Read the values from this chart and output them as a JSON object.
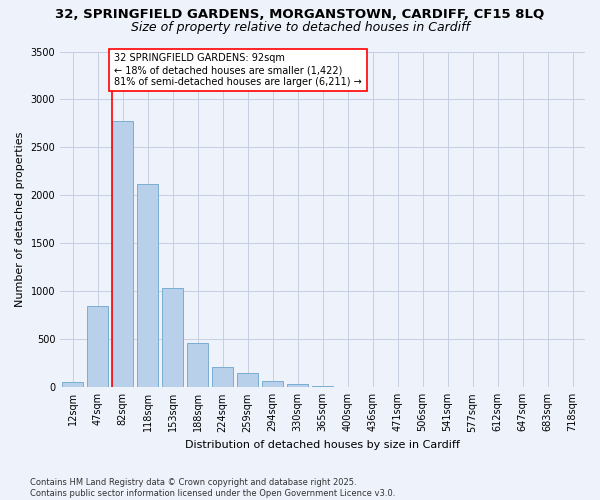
{
  "title1": "32, SPRINGFIELD GARDENS, MORGANSTOWN, CARDIFF, CF15 8LQ",
  "title2": "Size of property relative to detached houses in Cardiff",
  "xlabel": "Distribution of detached houses by size in Cardiff",
  "ylabel": "Number of detached properties",
  "bar_labels": [
    "12sqm",
    "47sqm",
    "82sqm",
    "118sqm",
    "153sqm",
    "188sqm",
    "224sqm",
    "259sqm",
    "294sqm",
    "330sqm",
    "365sqm",
    "400sqm",
    "436sqm",
    "471sqm",
    "506sqm",
    "541sqm",
    "577sqm",
    "612sqm",
    "647sqm",
    "683sqm",
    "718sqm"
  ],
  "bar_values": [
    55,
    850,
    2780,
    2120,
    1040,
    460,
    210,
    150,
    65,
    30,
    10,
    5,
    2,
    1,
    0,
    0,
    0,
    0,
    0,
    0,
    0
  ],
  "bar_color": "#b8d0ea",
  "bar_edgecolor": "#7aadd4",
  "ylim": [
    0,
    3500
  ],
  "yticks": [
    0,
    500,
    1000,
    1500,
    2000,
    2500,
    3000,
    3500
  ],
  "red_line_index": 2,
  "annotation_title": "32 SPRINGFIELD GARDENS: 92sqm",
  "annotation_line1": "← 18% of detached houses are smaller (1,422)",
  "annotation_line2": "81% of semi-detached houses are larger (6,211) →",
  "footer1": "Contains HM Land Registry data © Crown copyright and database right 2025.",
  "footer2": "Contains public sector information licensed under the Open Government Licence v3.0.",
  "background_color": "#eef2fb",
  "grid_color": "#c5cfe0",
  "title1_fontsize": 9.5,
  "title2_fontsize": 9,
  "axis_label_fontsize": 8,
  "tick_fontsize": 7,
  "annotation_fontsize": 7,
  "footer_fontsize": 6
}
